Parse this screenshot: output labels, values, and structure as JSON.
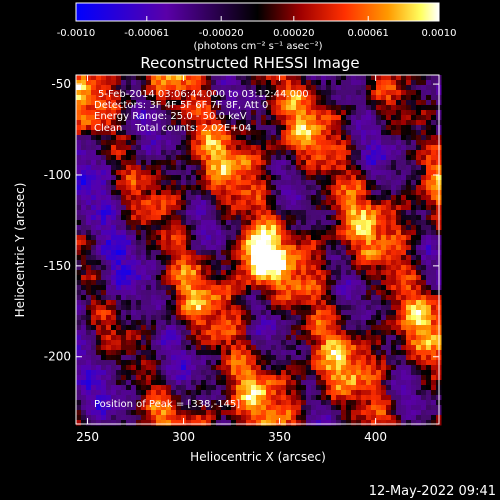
{
  "chart_data": {
    "type": "heatmap",
    "title": "Reconstructed RHESSI Image",
    "xlabel": "Heliocentric X (arcsec)",
    "ylabel": "Heliocentric Y (arcsec)",
    "xlim": [
      244,
      433
    ],
    "ylim": [
      -237,
      -45
    ],
    "xticks": [
      250,
      300,
      350,
      400
    ],
    "yticks": [
      -50,
      -100,
      -150,
      -200
    ],
    "colorbar": {
      "range": [
        -0.001,
        0.001
      ],
      "ticks": [
        "-0.0010",
        "-0.00061",
        "-0.00020",
        "0.00020",
        "0.00061",
        "0.0010"
      ],
      "label": "(photons cm⁻² s⁻¹ asec⁻²)",
      "colors": [
        "#0000ff",
        "#5a00a8",
        "#000000",
        "#a00000",
        "#ff3000",
        "#ff9a00",
        "#ffff60",
        "#ffffff"
      ]
    },
    "annotations": [
      "5-Feb-2014 03:06:44.000 to 03:12:44.000",
      "Detectors: 3F 4F 5F 6F 7F 8F, Att 0",
      "Energy Range: 25.0 - 50.0 keV",
      "Clean    Total counts: 2.02E+04"
    ],
    "peak_label": "Position of Peak = [338,-145]",
    "peak": {
      "x": 338,
      "y": -145
    },
    "grid": false
  },
  "footer": {
    "timestamp": "12-May-2022 09:41"
  }
}
